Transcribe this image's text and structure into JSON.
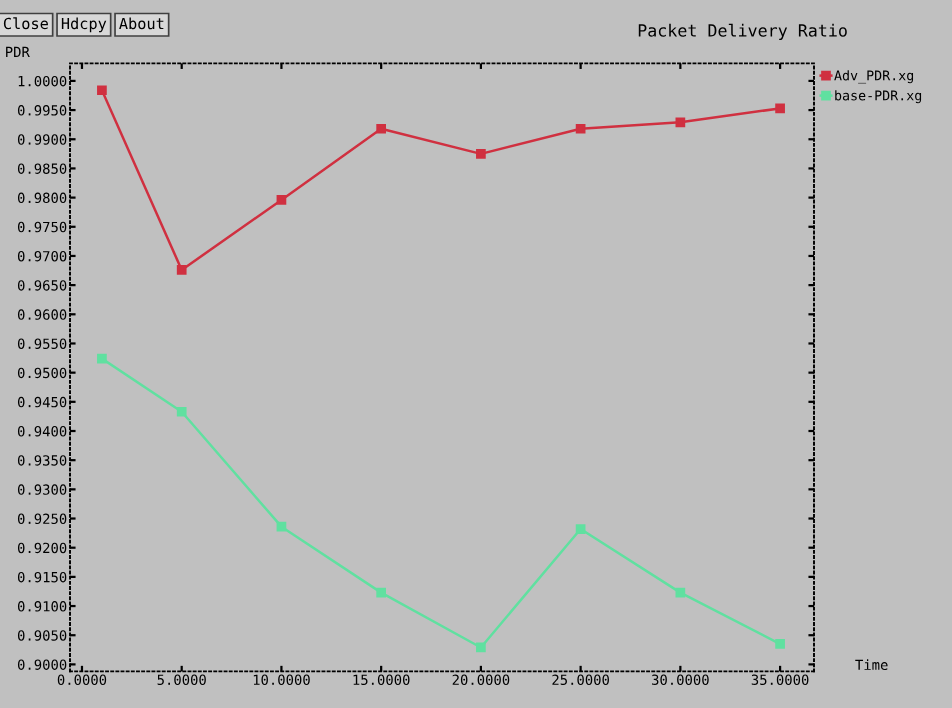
{
  "chart_data": {
    "type": "line",
    "title": "Packet Delivery Ratio",
    "ylabel": "PDR",
    "xlabel": "Time",
    "annotations": [
      "Close",
      "Hdcpy",
      "About"
    ],
    "x": [
      1,
      5,
      10,
      15,
      20,
      25,
      30,
      35
    ],
    "series": [
      {
        "name": "Adv_PDR.xg",
        "color": "#d03040",
        "values": [
          0.9984,
          0.9676,
          0.9796,
          0.9918,
          0.9875,
          0.9918,
          0.9929,
          0.9953
        ]
      },
      {
        "name": "base-PDR.xg",
        "color": "#60e0a0",
        "values": [
          0.9524,
          0.9433,
          0.9236,
          0.9123,
          0.9029,
          0.9232,
          0.9123,
          0.9035
        ]
      }
    ],
    "xlim": [
      -0.6,
      36.7
    ],
    "ylim": [
      0.8988,
      1.003
    ],
    "xticks": [
      {
        "value": 0,
        "label": "0.0000"
      },
      {
        "value": 5,
        "label": "5.0000"
      },
      {
        "value": 10,
        "label": "10.0000"
      },
      {
        "value": 15,
        "label": "15.0000"
      },
      {
        "value": 20,
        "label": "20.0000"
      },
      {
        "value": 25,
        "label": "25.0000"
      },
      {
        "value": 30,
        "label": "30.0000"
      },
      {
        "value": 35,
        "label": "35.0000"
      }
    ],
    "yticks": [
      {
        "value": 0.9,
        "label": "0.9000"
      },
      {
        "value": 0.905,
        "label": "0.9050"
      },
      {
        "value": 0.91,
        "label": "0.9100"
      },
      {
        "value": 0.915,
        "label": "0.9150"
      },
      {
        "value": 0.92,
        "label": "0.9200"
      },
      {
        "value": 0.925,
        "label": "0.9250"
      },
      {
        "value": 0.93,
        "label": "0.9300"
      },
      {
        "value": 0.935,
        "label": "0.9350"
      },
      {
        "value": 0.94,
        "label": "0.9400"
      },
      {
        "value": 0.945,
        "label": "0.9450"
      },
      {
        "value": 0.95,
        "label": "0.9500"
      },
      {
        "value": 0.955,
        "label": "0.9550"
      },
      {
        "value": 0.96,
        "label": "0.9600"
      },
      {
        "value": 0.965,
        "label": "0.9650"
      },
      {
        "value": 0.97,
        "label": "0.9700"
      },
      {
        "value": 0.975,
        "label": "0.9750"
      },
      {
        "value": 0.98,
        "label": "0.9800"
      },
      {
        "value": 0.985,
        "label": "0.9850"
      },
      {
        "value": 0.99,
        "label": "0.9900"
      },
      {
        "value": 0.995,
        "label": "0.9950"
      },
      {
        "value": 1.0,
        "label": "1.0000"
      }
    ],
    "grid": false,
    "legend": "right",
    "marker": "square",
    "line_style": "solid"
  }
}
